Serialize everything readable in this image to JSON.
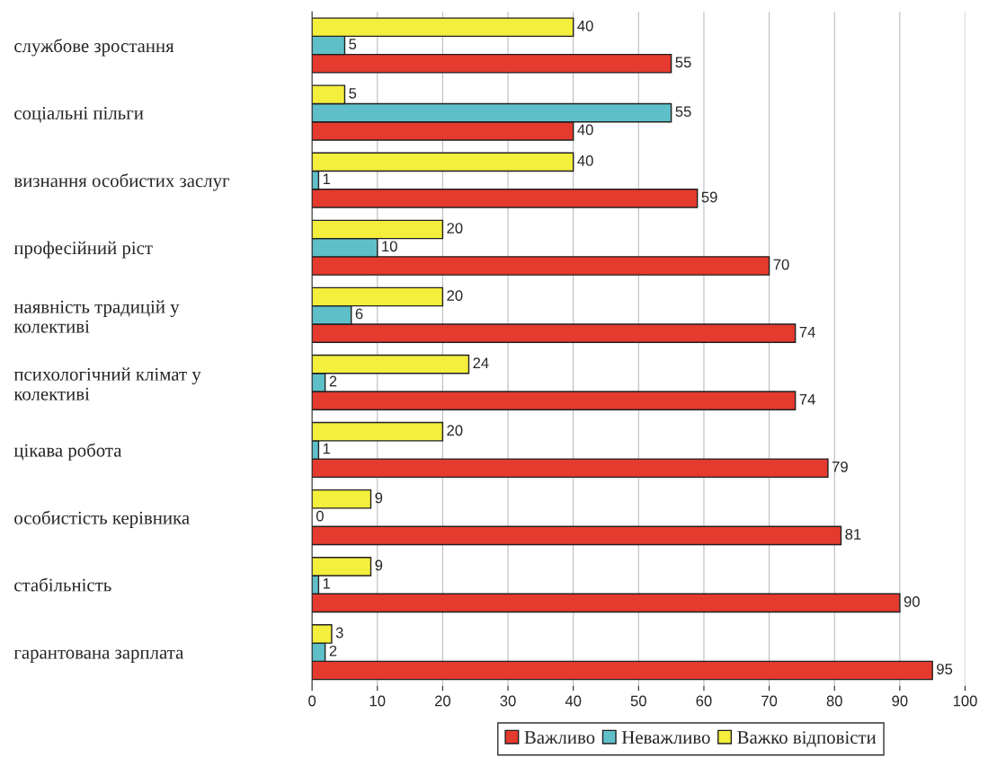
{
  "chart_data": {
    "type": "bar",
    "orientation": "horizontal",
    "categories": [
      "службове зростання",
      "соціальні пільги",
      "визнання особистих заслуг",
      "професійний ріст",
      "наявність традицій у\nколективі",
      "психологічний клімат у\nколективі",
      "цікава робота",
      "особистість керівника",
      "стабільність",
      "гарантована зарплата"
    ],
    "series": [
      {
        "name": "Важливо",
        "color": "#e53a2e",
        "values": [
          55,
          40,
          59,
          70,
          74,
          74,
          79,
          81,
          90,
          95
        ]
      },
      {
        "name": "Неважливо",
        "color": "#5fbfc9",
        "values": [
          5,
          55,
          1,
          10,
          6,
          2,
          1,
          0,
          1,
          2
        ]
      },
      {
        "name": "Важко відповісти",
        "color": "#f4ee3c",
        "values": [
          40,
          5,
          40,
          20,
          20,
          24,
          20,
          9,
          9,
          3
        ]
      }
    ],
    "xlim": [
      0,
      100
    ],
    "xticks": [
      0,
      10,
      20,
      30,
      40,
      50,
      60,
      70,
      80,
      90,
      100
    ],
    "grid": "x",
    "legend": "bottom",
    "data_labels": true
  }
}
